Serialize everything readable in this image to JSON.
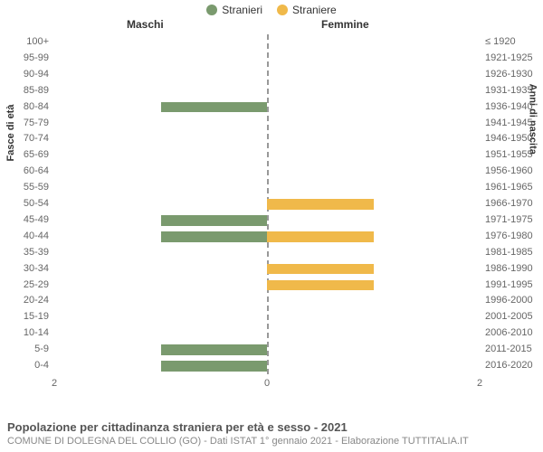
{
  "legend": {
    "male": {
      "label": "Stranieri",
      "color": "#7a9a6e"
    },
    "female": {
      "label": "Straniere",
      "color": "#f0b94a"
    }
  },
  "columns": {
    "left": "Maschi",
    "right": "Femmine"
  },
  "axes": {
    "left_title": "Fasce di età",
    "right_title": "Anni di nascita",
    "xmax": 2,
    "x_ticks": [
      {
        "pos": 0,
        "label": "2"
      },
      {
        "pos": 50,
        "label": "0"
      },
      {
        "pos": 100,
        "label": "2"
      }
    ]
  },
  "chart": {
    "type": "population-pyramid",
    "row_height": 17.9,
    "bar_pad_v": 3,
    "center_dash_color": "#999999",
    "background_color": "#ffffff",
    "label_color": "#666666",
    "label_fontsize": 11
  },
  "rows": [
    {
      "age": "100+",
      "birth": "≤ 1920",
      "m": 0,
      "f": 0
    },
    {
      "age": "95-99",
      "birth": "1921-1925",
      "m": 0,
      "f": 0
    },
    {
      "age": "90-94",
      "birth": "1926-1930",
      "m": 0,
      "f": 0
    },
    {
      "age": "85-89",
      "birth": "1931-1935",
      "m": 0,
      "f": 0
    },
    {
      "age": "80-84",
      "birth": "1936-1940",
      "m": 1,
      "f": 0
    },
    {
      "age": "75-79",
      "birth": "1941-1945",
      "m": 0,
      "f": 0
    },
    {
      "age": "70-74",
      "birth": "1946-1950",
      "m": 0,
      "f": 0
    },
    {
      "age": "65-69",
      "birth": "1951-1955",
      "m": 0,
      "f": 0
    },
    {
      "age": "60-64",
      "birth": "1956-1960",
      "m": 0,
      "f": 0
    },
    {
      "age": "55-59",
      "birth": "1961-1965",
      "m": 0,
      "f": 0
    },
    {
      "age": "50-54",
      "birth": "1966-1970",
      "m": 0,
      "f": 1
    },
    {
      "age": "45-49",
      "birth": "1971-1975",
      "m": 1,
      "f": 0
    },
    {
      "age": "40-44",
      "birth": "1976-1980",
      "m": 1,
      "f": 1
    },
    {
      "age": "35-39",
      "birth": "1981-1985",
      "m": 0,
      "f": 0
    },
    {
      "age": "30-34",
      "birth": "1986-1990",
      "m": 0,
      "f": 1
    },
    {
      "age": "25-29",
      "birth": "1991-1995",
      "m": 0,
      "f": 1
    },
    {
      "age": "20-24",
      "birth": "1996-2000",
      "m": 0,
      "f": 0
    },
    {
      "age": "15-19",
      "birth": "2001-2005",
      "m": 0,
      "f": 0
    },
    {
      "age": "10-14",
      "birth": "2006-2010",
      "m": 0,
      "f": 0
    },
    {
      "age": "5-9",
      "birth": "2011-2015",
      "m": 1,
      "f": 0
    },
    {
      "age": "0-4",
      "birth": "2016-2020",
      "m": 1,
      "f": 0
    }
  ],
  "footer": {
    "title": "Popolazione per cittadinanza straniera per età e sesso - 2021",
    "sub": "COMUNE DI DOLEGNA DEL COLLIO (GO) - Dati ISTAT 1° gennaio 2021 - Elaborazione TUTTITALIA.IT"
  }
}
